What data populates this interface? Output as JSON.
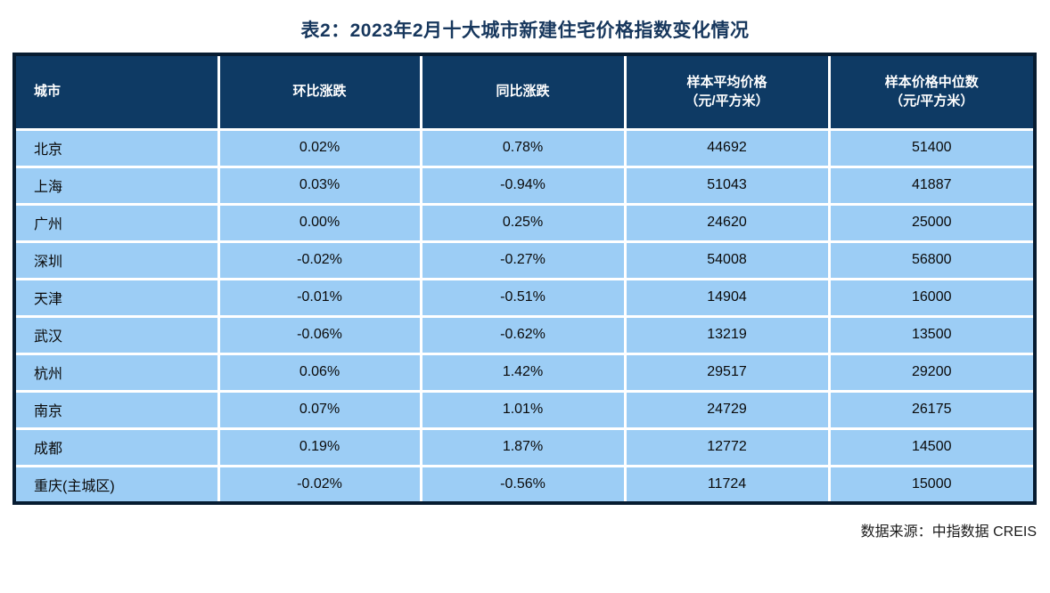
{
  "title": "表2：2023年2月十大城市新建住宅价格指数变化情况",
  "table": {
    "columns": [
      "城市",
      "环比涨跌",
      "同比涨跌",
      "样本平均价格\n（元/平方米）",
      "样本价格中位数\n（元/平方米）"
    ],
    "rows": [
      [
        "北京",
        "0.02%",
        "0.78%",
        "44692",
        "51400"
      ],
      [
        "上海",
        "0.03%",
        "-0.94%",
        "51043",
        "41887"
      ],
      [
        "广州",
        "0.00%",
        "0.25%",
        "24620",
        "25000"
      ],
      [
        "深圳",
        "-0.02%",
        "-0.27%",
        "54008",
        "56800"
      ],
      [
        "天津",
        "-0.01%",
        "-0.51%",
        "14904",
        "16000"
      ],
      [
        "武汉",
        "-0.06%",
        "-0.62%",
        "13219",
        "13500"
      ],
      [
        "杭州",
        "0.06%",
        "1.42%",
        "29517",
        "29200"
      ],
      [
        "南京",
        "0.07%",
        "1.01%",
        "24729",
        "26175"
      ],
      [
        "成都",
        "0.19%",
        "1.87%",
        "12772",
        "14500"
      ],
      [
        "重庆(主城区)",
        "-0.02%",
        "-0.56%",
        "11724",
        "15000"
      ]
    ]
  },
  "footer": {
    "source": "数据来源：中指数据 CREIS"
  },
  "colors": {
    "header_bg": "#0E3A64",
    "row_bg": "#9CCDF5",
    "outer_border": "#071C31",
    "gridline": "#FFFFFF",
    "title_text": "#17375D",
    "header_text": "#FFFFFF",
    "cell_text": "#0A0A0A"
  }
}
